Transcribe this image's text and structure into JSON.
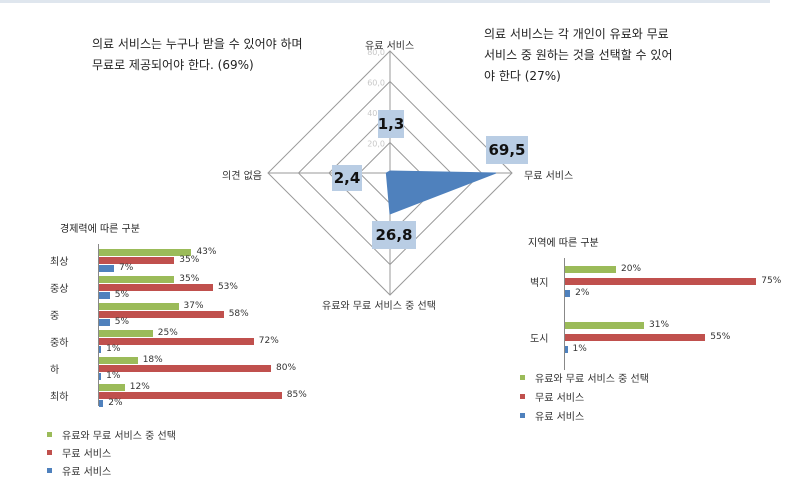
{
  "notes": {
    "left": "의료 서비스는 누구나 받을 수 있어야 하며\n무료로 제공되어야 한다. (69%)",
    "right": "의료 서비스는 각 개인이 유료와 무료\n서비스 중 원하는 것을 선택할 수 있어\n야 한다 (27%)"
  },
  "colors": {
    "green": "#9bbb59",
    "red": "#c0504d",
    "blue": "#4f81bd",
    "box": "#b9cde4"
  },
  "chart_data": [
    {
      "type": "radar",
      "axes": [
        "유료 서비스",
        "무료 서비스",
        "유료와 무료 서비스 중 선택",
        "의견 없음"
      ],
      "values": [
        1.3,
        69.5,
        26.8,
        2.4
      ],
      "value_labels": [
        "1,3",
        "69,5",
        "26,8",
        "2,4"
      ],
      "range": [
        0,
        80
      ],
      "rings": [
        20,
        40,
        60,
        80
      ],
      "tick_labels": [
        "20,0",
        "40,0",
        "60,0",
        "80,0"
      ]
    },
    {
      "type": "bar",
      "orientation": "horizontal",
      "title": "경제력에 따른 구분",
      "categories": [
        "최상",
        "중상",
        "중",
        "중하",
        "하",
        "최하"
      ],
      "series": [
        {
          "name": "유료와 무료 서비스 중 선택",
          "values": [
            43,
            35,
            37,
            25,
            18,
            12
          ],
          "labels": [
            "43%",
            "35%",
            "37%",
            "25%",
            "18%",
            "12%"
          ]
        },
        {
          "name": "무료 서비스",
          "values": [
            35,
            53,
            58,
            72,
            80,
            85
          ],
          "labels": [
            "35%",
            "53%",
            "58%",
            "72%",
            "80%",
            "85%"
          ]
        },
        {
          "name": "유료 서비스",
          "values": [
            7,
            5,
            5,
            1,
            1,
            2
          ],
          "labels": [
            "7%",
            "5%",
            "5%",
            "1%",
            "1%",
            "2%"
          ]
        }
      ],
      "xlim": [
        0,
        100
      ],
      "legend_position": "bottom-left"
    },
    {
      "type": "bar",
      "orientation": "horizontal",
      "title": "지역에 따른 구분",
      "categories": [
        "벽지",
        "도시"
      ],
      "series": [
        {
          "name": "유료와 무료 서비스 중 선택",
          "values": [
            20,
            31
          ],
          "labels": [
            "20%",
            "31%"
          ]
        },
        {
          "name": "무료 서비스",
          "values": [
            75,
            55
          ],
          "labels": [
            "75%",
            "55%"
          ]
        },
        {
          "name": "유료 서비스",
          "values": [
            2,
            1
          ],
          "labels": [
            "2%",
            "1%"
          ]
        }
      ],
      "xlim": [
        0,
        100
      ],
      "legend_position": "bottom-left"
    }
  ]
}
